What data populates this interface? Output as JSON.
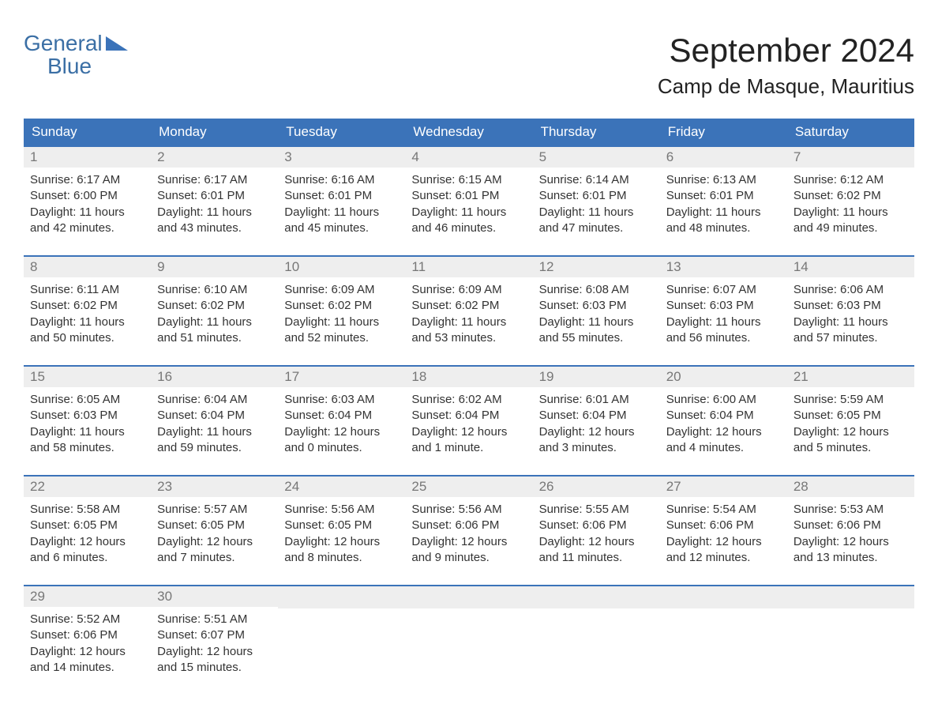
{
  "logo": {
    "top": "General",
    "bottom": "Blue",
    "text_color": "#3b6fa5",
    "triangle_color": "#3b73b9"
  },
  "title": {
    "month": "September 2024",
    "location": "Camp de Masque, Mauritius"
  },
  "colors": {
    "header_bg": "#3b73b9",
    "header_text": "#ffffff",
    "daynum_bg": "#eeeeee",
    "daynum_text": "#777777",
    "row_border": "#3b73b9",
    "body_text": "#333333",
    "page_bg": "#ffffff"
  },
  "weekdays": [
    "Sunday",
    "Monday",
    "Tuesday",
    "Wednesday",
    "Thursday",
    "Friday",
    "Saturday"
  ],
  "labels": {
    "sunrise": "Sunrise:",
    "sunset": "Sunset:",
    "daylight_prefix": "Daylight:"
  },
  "weeks": [
    [
      {
        "day": "1",
        "sunrise": "6:17 AM",
        "sunset": "6:00 PM",
        "daylight": "11 hours and 42 minutes."
      },
      {
        "day": "2",
        "sunrise": "6:17 AM",
        "sunset": "6:01 PM",
        "daylight": "11 hours and 43 minutes."
      },
      {
        "day": "3",
        "sunrise": "6:16 AM",
        "sunset": "6:01 PM",
        "daylight": "11 hours and 45 minutes."
      },
      {
        "day": "4",
        "sunrise": "6:15 AM",
        "sunset": "6:01 PM",
        "daylight": "11 hours and 46 minutes."
      },
      {
        "day": "5",
        "sunrise": "6:14 AM",
        "sunset": "6:01 PM",
        "daylight": "11 hours and 47 minutes."
      },
      {
        "day": "6",
        "sunrise": "6:13 AM",
        "sunset": "6:01 PM",
        "daylight": "11 hours and 48 minutes."
      },
      {
        "day": "7",
        "sunrise": "6:12 AM",
        "sunset": "6:02 PM",
        "daylight": "11 hours and 49 minutes."
      }
    ],
    [
      {
        "day": "8",
        "sunrise": "6:11 AM",
        "sunset": "6:02 PM",
        "daylight": "11 hours and 50 minutes."
      },
      {
        "day": "9",
        "sunrise": "6:10 AM",
        "sunset": "6:02 PM",
        "daylight": "11 hours and 51 minutes."
      },
      {
        "day": "10",
        "sunrise": "6:09 AM",
        "sunset": "6:02 PM",
        "daylight": "11 hours and 52 minutes."
      },
      {
        "day": "11",
        "sunrise": "6:09 AM",
        "sunset": "6:02 PM",
        "daylight": "11 hours and 53 minutes."
      },
      {
        "day": "12",
        "sunrise": "6:08 AM",
        "sunset": "6:03 PM",
        "daylight": "11 hours and 55 minutes."
      },
      {
        "day": "13",
        "sunrise": "6:07 AM",
        "sunset": "6:03 PM",
        "daylight": "11 hours and 56 minutes."
      },
      {
        "day": "14",
        "sunrise": "6:06 AM",
        "sunset": "6:03 PM",
        "daylight": "11 hours and 57 minutes."
      }
    ],
    [
      {
        "day": "15",
        "sunrise": "6:05 AM",
        "sunset": "6:03 PM",
        "daylight": "11 hours and 58 minutes."
      },
      {
        "day": "16",
        "sunrise": "6:04 AM",
        "sunset": "6:04 PM",
        "daylight": "11 hours and 59 minutes."
      },
      {
        "day": "17",
        "sunrise": "6:03 AM",
        "sunset": "6:04 PM",
        "daylight": "12 hours and 0 minutes."
      },
      {
        "day": "18",
        "sunrise": "6:02 AM",
        "sunset": "6:04 PM",
        "daylight": "12 hours and 1 minute."
      },
      {
        "day": "19",
        "sunrise": "6:01 AM",
        "sunset": "6:04 PM",
        "daylight": "12 hours and 3 minutes."
      },
      {
        "day": "20",
        "sunrise": "6:00 AM",
        "sunset": "6:04 PM",
        "daylight": "12 hours and 4 minutes."
      },
      {
        "day": "21",
        "sunrise": "5:59 AM",
        "sunset": "6:05 PM",
        "daylight": "12 hours and 5 minutes."
      }
    ],
    [
      {
        "day": "22",
        "sunrise": "5:58 AM",
        "sunset": "6:05 PM",
        "daylight": "12 hours and 6 minutes."
      },
      {
        "day": "23",
        "sunrise": "5:57 AM",
        "sunset": "6:05 PM",
        "daylight": "12 hours and 7 minutes."
      },
      {
        "day": "24",
        "sunrise": "5:56 AM",
        "sunset": "6:05 PM",
        "daylight": "12 hours and 8 minutes."
      },
      {
        "day": "25",
        "sunrise": "5:56 AM",
        "sunset": "6:06 PM",
        "daylight": "12 hours and 9 minutes."
      },
      {
        "day": "26",
        "sunrise": "5:55 AM",
        "sunset": "6:06 PM",
        "daylight": "12 hours and 11 minutes."
      },
      {
        "day": "27",
        "sunrise": "5:54 AM",
        "sunset": "6:06 PM",
        "daylight": "12 hours and 12 minutes."
      },
      {
        "day": "28",
        "sunrise": "5:53 AM",
        "sunset": "6:06 PM",
        "daylight": "12 hours and 13 minutes."
      }
    ],
    [
      {
        "day": "29",
        "sunrise": "5:52 AM",
        "sunset": "6:06 PM",
        "daylight": "12 hours and 14 minutes."
      },
      {
        "day": "30",
        "sunrise": "5:51 AM",
        "sunset": "6:07 PM",
        "daylight": "12 hours and 15 minutes."
      },
      null,
      null,
      null,
      null,
      null
    ]
  ]
}
